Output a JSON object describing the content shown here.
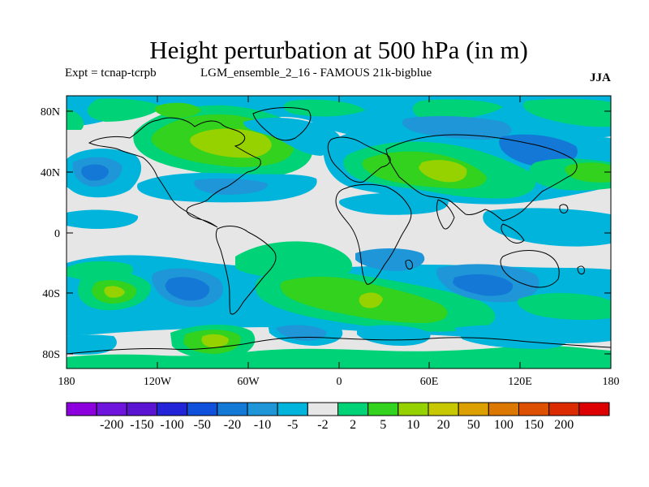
{
  "title": "Height perturbation at 500 hPa (in m)",
  "experiment": "Expt = tcnap-tcrpb",
  "ensemble": "LGM_ensemble_2_16 - FAMOUS 21k-bigblue",
  "season": "JJA",
  "map": {
    "projection": "cylindrical-equidistant",
    "lon_range": [
      -180,
      180
    ],
    "lat_range": [
      -90,
      90
    ],
    "y_ticks": [
      "80N",
      "40N",
      "0",
      "40S",
      "80S"
    ],
    "x_ticks": [
      "180",
      "120W",
      "60W",
      "0",
      "60E",
      "120E",
      "180"
    ],
    "missing_color": "#e6e6e6"
  },
  "colorbar": {
    "colors": [
      "#8b00dc",
      "#6e14dc",
      "#5a14d2",
      "#2323d7",
      "#0f50dc",
      "#1478d7",
      "#1e96d7",
      "#00b4dc",
      "#e6e6e6",
      "#00d278",
      "#32d21e",
      "#96d200",
      "#c8c800",
      "#dca000",
      "#dc7800",
      "#dc5000",
      "#dc2a00",
      "#dc0000"
    ],
    "labels": [
      "-200",
      "-150",
      "-100",
      "-50",
      "-20",
      "-10",
      "-5",
      "-2",
      "2",
      "5",
      "10",
      "20",
      "50",
      "100",
      "150",
      "200"
    ]
  },
  "icons": [
    "coastline-map-icon"
  ]
}
